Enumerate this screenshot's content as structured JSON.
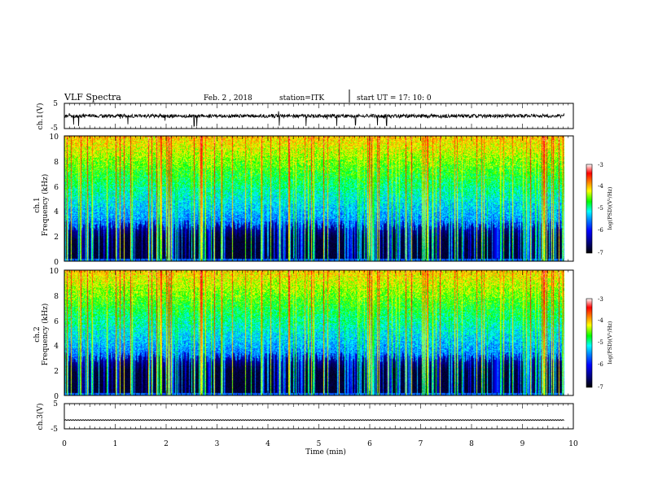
{
  "header": {
    "title": "VLF Spectra",
    "date": "Feb. 2  , 2018",
    "station": "station=ITK",
    "start": "start  UT  =   17: 10: 0"
  },
  "colors": {
    "background": "#ffffff",
    "spectrogram_floor": "#000000",
    "trace": "#000000",
    "colormap": [
      "#000000",
      "#00007f",
      "#0000ff",
      "#0080ff",
      "#00ffff",
      "#00ff00",
      "#ffff00",
      "#ff8000",
      "#ff0000",
      "#ffffff"
    ]
  },
  "chart_data": [
    {
      "type": "line",
      "name": "ch1-waveform",
      "ylabel": "ch.1(V)",
      "ylim": [
        -5,
        5
      ],
      "y_ticks": [
        "5",
        "-5"
      ],
      "xlim": [
        0,
        10
      ],
      "baseline": 0,
      "noise_amplitude": 1.0,
      "spike_times_min": [
        0.18,
        0.28,
        1.25,
        2.55,
        2.6,
        4.22,
        4.75,
        5.35,
        5.72,
        6.15,
        6.33
      ]
    },
    {
      "type": "heatmap",
      "name": "ch1-spectrogram",
      "ylabel_channel": "ch.1",
      "ylabel": "Frequency (kHz)",
      "ylim": [
        0,
        10
      ],
      "y_ticks": [
        "0",
        "2",
        "4",
        "6",
        "8",
        "10"
      ],
      "xlim": [
        0,
        10
      ],
      "data_extent_min": 9.82,
      "color_scale": {
        "label": "log(PSD)(V²/Hz)",
        "range": [
          -7,
          -3
        ],
        "ticks": [
          "-3",
          "-4",
          "-5",
          "-6",
          "-7"
        ]
      }
    },
    {
      "type": "heatmap",
      "name": "ch2-spectrogram",
      "ylabel_channel": "ch.2",
      "ylabel": "Frequency (kHz)",
      "ylim": [
        0,
        10
      ],
      "y_ticks": [
        "0",
        "2",
        "4",
        "6",
        "8",
        "10"
      ],
      "xlim": [
        0,
        10
      ],
      "data_extent_min": 9.82,
      "color_scale": {
        "label": "log(PSD)(V²/Hz)",
        "range": [
          -7,
          -3
        ],
        "ticks": [
          "-3",
          "-4",
          "-5",
          "-6",
          "-7"
        ]
      }
    },
    {
      "type": "line",
      "name": "ch3-waveform",
      "ylabel": "ch.3(V)",
      "ylim": [
        -5,
        5
      ],
      "y_ticks": [
        "5",
        "-5"
      ],
      "xlim": [
        0,
        10
      ],
      "baseline": -1.5,
      "xlabel": "Time (min)",
      "x_ticks": [
        "0",
        "1",
        "2",
        "3",
        "4",
        "5",
        "6",
        "7",
        "8",
        "9",
        "10"
      ]
    }
  ]
}
